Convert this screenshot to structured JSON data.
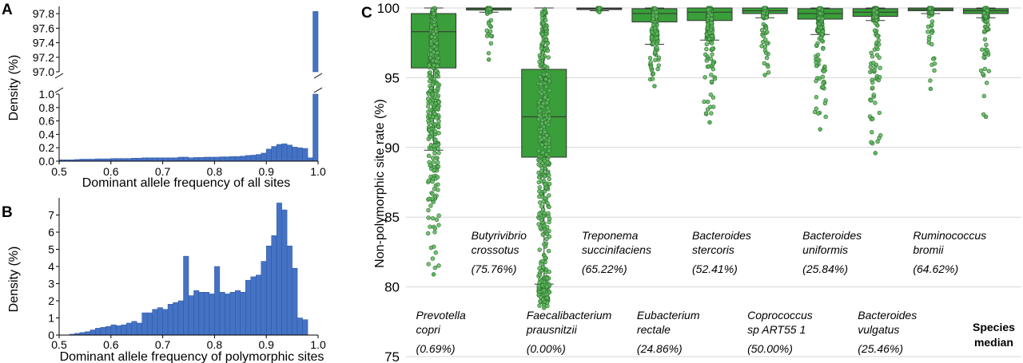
{
  "panels": {
    "a": "A",
    "b": "B",
    "c": "C"
  },
  "chart_data": [
    {
      "panel": "A",
      "type": "bar",
      "xlabel": "Dominant allele frequency of all sites",
      "ylabel": "Density (%)",
      "xlim": [
        0.5,
        1.0
      ],
      "x_ticks": [
        "0.5",
        "0.6",
        "0.7",
        "0.8",
        "0.9",
        "1.0"
      ],
      "y_ticks_lower": [
        "0.0",
        "0.2",
        "0.4",
        "0.6",
        "0.8",
        "1.0"
      ],
      "y_ticks_upper": [
        "97.0",
        "97.2",
        "97.4",
        "97.6",
        "97.8"
      ],
      "broken_axis": true,
      "lower_ylim": [
        0,
        1.0
      ],
      "upper_ylim": [
        97.0,
        97.9
      ],
      "bin_width": 0.01,
      "x": [
        0.505,
        0.515,
        0.525,
        0.535,
        0.545,
        0.555,
        0.565,
        0.575,
        0.585,
        0.595,
        0.605,
        0.615,
        0.625,
        0.635,
        0.645,
        0.655,
        0.665,
        0.675,
        0.685,
        0.695,
        0.705,
        0.715,
        0.725,
        0.735,
        0.745,
        0.755,
        0.765,
        0.775,
        0.785,
        0.795,
        0.805,
        0.815,
        0.825,
        0.835,
        0.845,
        0.855,
        0.865,
        0.875,
        0.885,
        0.895,
        0.905,
        0.915,
        0.925,
        0.935,
        0.945,
        0.955,
        0.965,
        0.975,
        0.985,
        0.995
      ],
      "values": [
        0.02,
        0.02,
        0.02,
        0.025,
        0.03,
        0.03,
        0.03,
        0.035,
        0.035,
        0.035,
        0.04,
        0.04,
        0.04,
        0.04,
        0.045,
        0.045,
        0.05,
        0.05,
        0.05,
        0.05,
        0.05,
        0.05,
        0.05,
        0.06,
        0.06,
        0.05,
        0.055,
        0.055,
        0.06,
        0.06,
        0.06,
        0.065,
        0.065,
        0.07,
        0.07,
        0.075,
        0.085,
        0.09,
        0.1,
        0.12,
        0.18,
        0.22,
        0.25,
        0.26,
        0.24,
        0.21,
        0.2,
        0.19,
        0.05,
        97.83
      ]
    },
    {
      "panel": "B",
      "type": "bar",
      "xlabel": "Dominant allele frequency of polymorphic sites",
      "ylabel": "Density (%)",
      "xlim": [
        0.5,
        1.0
      ],
      "ylim": [
        0,
        8
      ],
      "x_ticks": [
        "0.5",
        "0.6",
        "0.7",
        "0.8",
        "0.9",
        "1.0"
      ],
      "y_ticks": [
        "0",
        "1",
        "2",
        "3",
        "4",
        "5",
        "6",
        "7"
      ],
      "bin_width": 0.01,
      "x": [
        0.505,
        0.515,
        0.525,
        0.535,
        0.545,
        0.555,
        0.565,
        0.575,
        0.585,
        0.595,
        0.605,
        0.615,
        0.625,
        0.635,
        0.645,
        0.655,
        0.665,
        0.675,
        0.685,
        0.695,
        0.705,
        0.715,
        0.725,
        0.735,
        0.745,
        0.755,
        0.765,
        0.775,
        0.785,
        0.795,
        0.805,
        0.815,
        0.825,
        0.835,
        0.845,
        0.855,
        0.865,
        0.875,
        0.885,
        0.895,
        0.905,
        0.915,
        0.925,
        0.935,
        0.945,
        0.955,
        0.965,
        0.975
      ],
      "values": [
        0.0,
        0.0,
        0.05,
        0.1,
        0.15,
        0.2,
        0.3,
        0.4,
        0.45,
        0.5,
        0.6,
        0.55,
        0.6,
        0.7,
        0.8,
        0.7,
        1.3,
        1.3,
        1.5,
        1.6,
        1.5,
        1.8,
        1.9,
        2.0,
        4.6,
        2.3,
        2.6,
        2.5,
        2.5,
        2.4,
        4.0,
        2.5,
        2.4,
        2.5,
        2.6,
        2.5,
        3.2,
        3.4,
        3.5,
        4.3,
        5.2,
        5.8,
        7.7,
        7.3,
        5.2,
        3.9,
        1.0,
        0.9
      ]
    },
    {
      "panel": "C",
      "type": "box",
      "ylabel": "Non-polymorphic site rate (%)",
      "ylim": [
        75,
        100
      ],
      "y_ticks": [
        "75",
        "80",
        "85",
        "90",
        "95",
        "100"
      ],
      "grid": true,
      "point_color": "#5cb85c",
      "box_color": "#3a9e3a",
      "series": [
        {
          "species": [
            "Prevotella",
            "copri"
          ],
          "pct": "(0.69%)",
          "q1": 95.7,
          "median": 98.3,
          "q3": 99.6,
          "whisker_low": 89.8,
          "whisker_high": 100,
          "min_point": 80.9,
          "label_pos": "bottom"
        },
        {
          "species": [
            "Butyrivibrio",
            "crossotus"
          ],
          "pct": "(75.76%)",
          "q1": 99.85,
          "median": 99.95,
          "q3": 100,
          "whisker_low": 99.7,
          "whisker_high": 100,
          "min_point": 96.3,
          "label_pos": "top"
        },
        {
          "species": [
            "Faecalibacterium",
            "prausnitzii"
          ],
          "pct": "(0.00%)",
          "q1": 89.3,
          "median": 92.2,
          "q3": 95.6,
          "whisker_low": 80.2,
          "whisker_high": 100,
          "min_point": 78.5,
          "label_pos": "bottom"
        },
        {
          "species": [
            "Treponema",
            "succinifaciens"
          ],
          "pct": "(65.22%)",
          "q1": 99.9,
          "median": 99.95,
          "q3": 100,
          "whisker_low": 99.8,
          "whisker_high": 100,
          "min_point": 99.7,
          "label_pos": "top"
        },
        {
          "species": [
            "Eubacterium",
            "rectale"
          ],
          "pct": "(24.86%)",
          "q1": 99.0,
          "median": 99.6,
          "q3": 99.95,
          "whisker_low": 97.4,
          "whisker_high": 100,
          "min_point": 94.4,
          "label_pos": "bottom"
        },
        {
          "species": [
            "Bacteroides",
            "stercoris"
          ],
          "pct": "(52.41%)",
          "q1": 99.1,
          "median": 99.7,
          "q3": 100,
          "whisker_low": 97.7,
          "whisker_high": 100,
          "min_point": 91.8,
          "label_pos": "top"
        },
        {
          "species": [
            "Coprococcus",
            "sp ART55 1"
          ],
          "pct": "(50.00%)",
          "q1": 99.6,
          "median": 99.8,
          "q3": 100,
          "whisker_low": 99.3,
          "whisker_high": 100,
          "min_point": 95.2,
          "label_pos": "bottom"
        },
        {
          "species": [
            "Bacteroides",
            "uniformis"
          ],
          "pct": "(25.84%)",
          "q1": 99.2,
          "median": 99.6,
          "q3": 99.95,
          "whisker_low": 98.1,
          "whisker_high": 100,
          "min_point": 91.3,
          "label_pos": "top"
        },
        {
          "species": [
            "Bacteroides",
            "vulgatus"
          ],
          "pct": "(25.46%)",
          "q1": 99.4,
          "median": 99.7,
          "q3": 99.95,
          "whisker_low": 99.1,
          "whisker_high": 100,
          "min_point": 89.6,
          "label_pos": "bottom"
        },
        {
          "species": [
            "Ruminococcus",
            "bromii"
          ],
          "pct": "(64.62%)",
          "q1": 99.8,
          "median": 99.9,
          "q3": 100,
          "whisker_low": 99.6,
          "whisker_high": 100,
          "min_point": 94.2,
          "label_pos": "top"
        },
        {
          "species": [
            "Species",
            "median"
          ],
          "pct": "",
          "bold": true,
          "q1": 99.6,
          "median": 99.8,
          "q3": 99.95,
          "whisker_low": 99.3,
          "whisker_high": 100,
          "min_point": 92.2,
          "label_pos": "bottom"
        }
      ]
    }
  ]
}
